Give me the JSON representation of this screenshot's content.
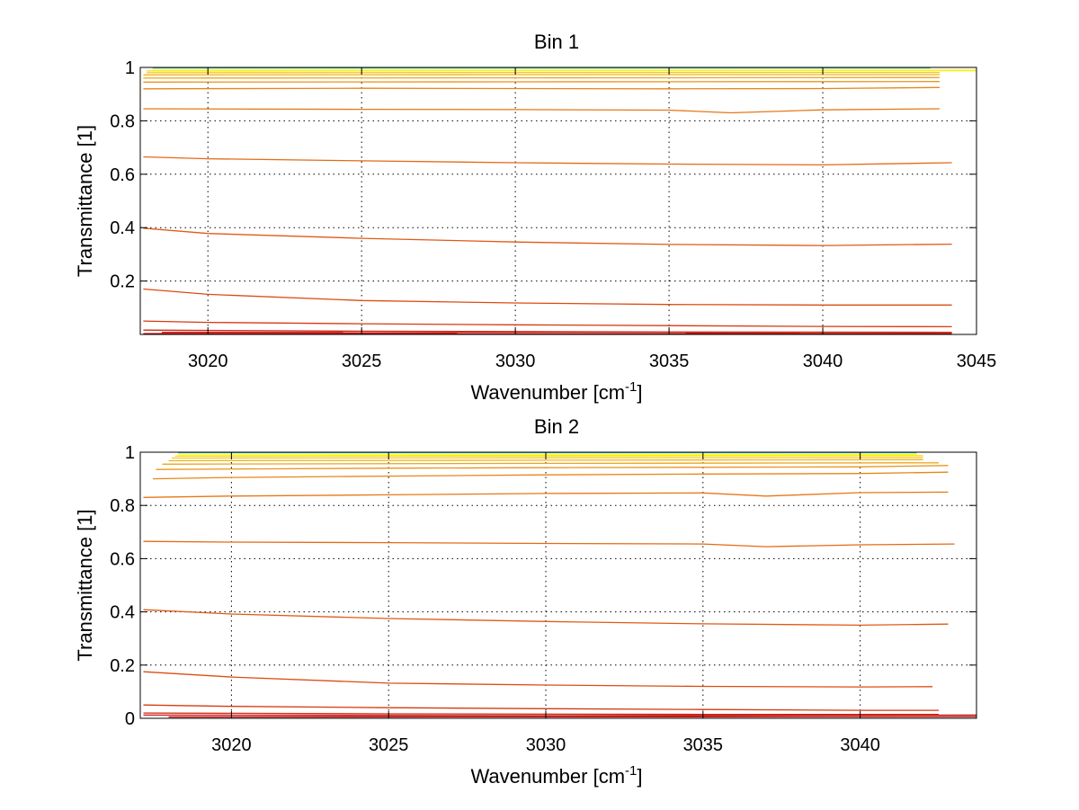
{
  "chart_data": [
    {
      "type": "line",
      "title": "Bin 1",
      "xlabel": "Wavenumber [cm",
      "xlabel_sup": "-1",
      "xlabel_end": "]",
      "ylabel": "Transmittance [1]",
      "xlim": [
        3017.8,
        3045
      ],
      "ylim": [
        0,
        1
      ],
      "xticks": [
        3020,
        3025,
        3030,
        3035,
        3040,
        3045
      ],
      "yticks": [
        0.2,
        0.4,
        0.6,
        0.8,
        1
      ],
      "xtick_labels": [
        "3020",
        "3025",
        "3030",
        "3035",
        "3040",
        "3045"
      ],
      "ytick_labels": [
        "0.2",
        "0.4",
        "0.6",
        "0.8",
        "1"
      ],
      "grid": true,
      "series": [
        {
          "color": "#c00000",
          "points": [
            [
              3017.9,
              0.003
            ],
            [
              3044.2,
              0.002
            ]
          ]
        },
        {
          "color": "#c81010",
          "points": [
            [
              3018.5,
              0.008
            ],
            [
              3044.2,
              0.006
            ]
          ]
        },
        {
          "color": "#d02810",
          "points": [
            [
              3017.9,
              0.016
            ],
            [
              3025,
              0.012
            ],
            [
              3035,
              0.009
            ],
            [
              3044.2,
              0.008
            ]
          ]
        },
        {
          "color": "#d63a10",
          "points": [
            [
              3017.9,
              0.05
            ],
            [
              3020,
              0.045
            ],
            [
              3025,
              0.04
            ],
            [
              3030,
              0.036
            ],
            [
              3035,
              0.033
            ],
            [
              3040,
              0.03
            ],
            [
              3044.2,
              0.029
            ]
          ]
        },
        {
          "color": "#dc4c12",
          "points": [
            [
              3017.9,
              0.17
            ],
            [
              3020,
              0.15
            ],
            [
              3025,
              0.127
            ],
            [
              3030,
              0.118
            ],
            [
              3035,
              0.112
            ],
            [
              3040,
              0.11
            ],
            [
              3044.2,
              0.11
            ]
          ]
        },
        {
          "color": "#e05a14",
          "points": [
            [
              3017.9,
              0.398
            ],
            [
              3020,
              0.378
            ],
            [
              3025,
              0.36
            ],
            [
              3030,
              0.346
            ],
            [
              3035,
              0.337
            ],
            [
              3040,
              0.333
            ],
            [
              3044.2,
              0.338
            ]
          ]
        },
        {
          "color": "#e46a16",
          "points": [
            [
              3017.9,
              0.665
            ],
            [
              3020,
              0.658
            ],
            [
              3025,
              0.65
            ],
            [
              3030,
              0.643
            ],
            [
              3035,
              0.638
            ],
            [
              3040,
              0.635
            ],
            [
              3044.2,
              0.643
            ]
          ]
        },
        {
          "color": "#e67818",
          "points": [
            [
              3017.9,
              0.845
            ],
            [
              3025,
              0.843
            ],
            [
              3030,
              0.842
            ],
            [
              3035,
              0.84
            ],
            [
              3037,
              0.83
            ],
            [
              3040,
              0.841
            ],
            [
              3043.8,
              0.845
            ]
          ]
        },
        {
          "color": "#e8861a",
          "points": [
            [
              3017.9,
              0.92
            ],
            [
              3025,
              0.922
            ],
            [
              3030,
              0.921
            ],
            [
              3035,
              0.92
            ],
            [
              3040,
              0.921
            ],
            [
              3043.8,
              0.925
            ]
          ]
        },
        {
          "color": "#ea941c",
          "points": [
            [
              3017.9,
              0.945
            ],
            [
              3030,
              0.946
            ],
            [
              3043.8,
              0.947
            ]
          ]
        },
        {
          "color": "#eca41e",
          "points": [
            [
              3017.9,
              0.96
            ],
            [
              3030,
              0.961
            ],
            [
              3043.8,
              0.962
            ]
          ]
        },
        {
          "color": "#eeb420",
          "points": [
            [
              3017.9,
              0.972
            ],
            [
              3030,
              0.973
            ],
            [
              3043.8,
              0.973
            ]
          ]
        },
        {
          "color": "#f2c822",
          "points": [
            [
              3018,
              0.98
            ],
            [
              3030,
              0.981
            ],
            [
              3043.8,
              0.981
            ]
          ]
        },
        {
          "color": "#f6dc24",
          "points": [
            [
              3018,
              0.987
            ],
            [
              3030,
              0.988
            ],
            [
              3045,
              0.988
            ]
          ]
        },
        {
          "color": "#ffff00",
          "points": [
            [
              3018.2,
              0.99
            ],
            [
              3045,
              0.99
            ]
          ]
        },
        {
          "color": "#40c8a0",
          "points": [
            [
              3018.2,
              0.998
            ],
            [
              3043.5,
              0.998
            ]
          ]
        }
      ]
    },
    {
      "type": "line",
      "title": "Bin 2",
      "xlabel": "Wavenumber [cm",
      "xlabel_sup": "-1",
      "xlabel_end": "]",
      "ylabel": "Transmittance [1]",
      "xlim": [
        3017.1,
        3043.7
      ],
      "ylim": [
        0,
        1
      ],
      "xticks": [
        3020,
        3025,
        3030,
        3035,
        3040
      ],
      "yticks": [
        0,
        0.2,
        0.4,
        0.6,
        0.8,
        1
      ],
      "xtick_labels": [
        "3020",
        "3025",
        "3030",
        "3035",
        "3040"
      ],
      "ytick_labels": [
        "0",
        "0.2",
        "0.4",
        "0.6",
        "0.8",
        "1"
      ],
      "grid": true,
      "series": [
        {
          "color": "#c00000",
          "points": [
            [
              3018,
              0.005
            ],
            [
              3043.7,
              0.006
            ]
          ]
        },
        {
          "color": "#c81010",
          "points": [
            [
              3017.2,
              0.012
            ],
            [
              3030,
              0.01
            ],
            [
              3043.7,
              0.012
            ]
          ]
        },
        {
          "color": "#d02810",
          "points": [
            [
              3017.2,
              0.02
            ],
            [
              3025,
              0.017
            ],
            [
              3035,
              0.015
            ],
            [
              3042.5,
              0.015
            ]
          ]
        },
        {
          "color": "#d63a10",
          "points": [
            [
              3017.2,
              0.05
            ],
            [
              3020,
              0.045
            ],
            [
              3025,
              0.04
            ],
            [
              3030,
              0.036
            ],
            [
              3035,
              0.033
            ],
            [
              3040,
              0.03
            ],
            [
              3042.5,
              0.03
            ]
          ]
        },
        {
          "color": "#dc4c12",
          "points": [
            [
              3017.2,
              0.175
            ],
            [
              3020,
              0.155
            ],
            [
              3025,
              0.132
            ],
            [
              3030,
              0.125
            ],
            [
              3035,
              0.12
            ],
            [
              3040,
              0.118
            ],
            [
              3042.3,
              0.119
            ]
          ]
        },
        {
          "color": "#e05a14",
          "points": [
            [
              3017.2,
              0.408
            ],
            [
              3020,
              0.392
            ],
            [
              3025,
              0.375
            ],
            [
              3030,
              0.364
            ],
            [
              3035,
              0.355
            ],
            [
              3040,
              0.35
            ],
            [
              3042.8,
              0.354
            ]
          ]
        },
        {
          "color": "#e46a16",
          "points": [
            [
              3017.2,
              0.665
            ],
            [
              3020,
              0.662
            ],
            [
              3025,
              0.66
            ],
            [
              3030,
              0.657
            ],
            [
              3035,
              0.655
            ],
            [
              3037,
              0.645
            ],
            [
              3040,
              0.652
            ],
            [
              3043,
              0.655
            ]
          ]
        },
        {
          "color": "#e67818",
          "points": [
            [
              3017.2,
              0.83
            ],
            [
              3020,
              0.835
            ],
            [
              3025,
              0.84
            ],
            [
              3030,
              0.845
            ],
            [
              3035,
              0.847
            ],
            [
              3037,
              0.835
            ],
            [
              3040,
              0.848
            ],
            [
              3042.8,
              0.85
            ]
          ]
        },
        {
          "color": "#e8861a",
          "points": [
            [
              3017.5,
              0.9
            ],
            [
              3020,
              0.905
            ],
            [
              3025,
              0.91
            ],
            [
              3030,
              0.915
            ],
            [
              3035,
              0.918
            ],
            [
              3040,
              0.92
            ],
            [
              3042.8,
              0.925
            ]
          ]
        },
        {
          "color": "#ea941c",
          "points": [
            [
              3017.6,
              0.935
            ],
            [
              3025,
              0.94
            ],
            [
              3030,
              0.942
            ],
            [
              3040,
              0.945
            ],
            [
              3042.8,
              0.95
            ]
          ]
        },
        {
          "color": "#eca41e",
          "points": [
            [
              3017.8,
              0.955
            ],
            [
              3030,
              0.958
            ],
            [
              3042.5,
              0.96
            ]
          ]
        },
        {
          "color": "#eeb420",
          "points": [
            [
              3018,
              0.968
            ],
            [
              3030,
              0.97
            ],
            [
              3042,
              0.972
            ]
          ]
        },
        {
          "color": "#f2c822",
          "points": [
            [
              3018.1,
              0.978
            ],
            [
              3030,
              0.979
            ],
            [
              3042,
              0.98
            ]
          ]
        },
        {
          "color": "#f6dc24",
          "points": [
            [
              3018.2,
              0.985
            ],
            [
              3030,
              0.986
            ],
            [
              3042,
              0.987
            ]
          ]
        },
        {
          "color": "#ffff00",
          "points": [
            [
              3018.3,
              0.99
            ],
            [
              3041.8,
              0.991
            ]
          ]
        },
        {
          "color": "#40c8a0",
          "points": [
            [
              3018.3,
              0.998
            ],
            [
              3041.8,
              0.998
            ]
          ]
        }
      ]
    }
  ]
}
